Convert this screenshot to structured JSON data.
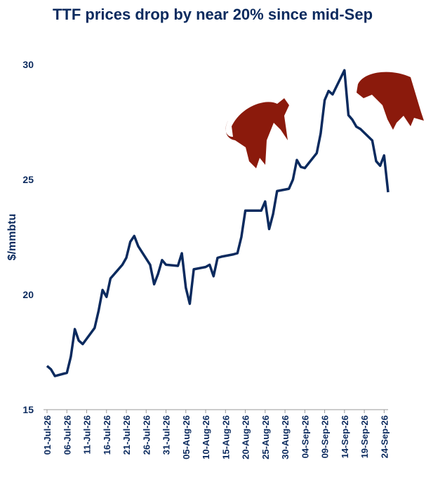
{
  "chart_data": {
    "type": "line",
    "title": "TTF prices drop by near 20% since mid-Sep",
    "y_label": "$/mmbtu",
    "x": [
      "01-Jul-26",
      "02-Jul-26",
      "03-Jul-26",
      "06-Jul-26",
      "07-Jul-26",
      "08-Jul-26",
      "09-Jul-26",
      "10-Jul-26",
      "13-Jul-26",
      "14-Jul-26",
      "15-Jul-26",
      "16-Jul-26",
      "17-Jul-26",
      "20-Jul-26",
      "21-Jul-26",
      "22-Jul-26",
      "23-Jul-26",
      "24-Jul-26",
      "27-Jul-26",
      "28-Jul-26",
      "29-Jul-26",
      "30-Jul-26",
      "31-Jul-26",
      "03-Aug-26",
      "04-Aug-26",
      "05-Aug-26",
      "06-Aug-26",
      "07-Aug-26",
      "10-Aug-26",
      "11-Aug-26",
      "12-Aug-26",
      "13-Aug-26",
      "14-Aug-26",
      "17-Aug-26",
      "18-Aug-26",
      "19-Aug-26",
      "20-Aug-26",
      "21-Aug-26",
      "24-Aug-26",
      "25-Aug-26",
      "26-Aug-26",
      "27-Aug-26",
      "28-Aug-26",
      "31-Aug-26",
      "01-Sep-26",
      "02-Sep-26",
      "03-Sep-26",
      "04-Sep-26",
      "07-Sep-26",
      "08-Sep-26",
      "09-Sep-26",
      "10-Sep-26",
      "11-Sep-26",
      "14-Sep-26",
      "15-Sep-26",
      "16-Sep-26",
      "17-Sep-26",
      "18-Sep-26",
      "21-Sep-26",
      "22-Sep-26",
      "23-Sep-26",
      "24-Sep-26",
      "25-Sep-26"
    ],
    "series": [
      {
        "name": "TTF",
        "color": "#0b2a5e",
        "values": [
          16.9,
          16.75,
          16.46,
          16.6,
          17.3,
          18.5,
          18.0,
          17.85,
          18.55,
          19.3,
          20.2,
          19.9,
          20.7,
          21.3,
          21.6,
          22.3,
          22.55,
          22.1,
          21.3,
          20.45,
          20.9,
          21.5,
          21.3,
          21.25,
          21.8,
          20.3,
          19.6,
          21.1,
          21.2,
          21.3,
          20.8,
          21.6,
          21.65,
          21.75,
          21.8,
          22.5,
          23.65,
          23.65,
          23.65,
          24.05,
          22.85,
          23.5,
          24.5,
          24.6,
          25.0,
          25.85,
          25.55,
          25.5,
          26.15,
          27.0,
          28.45,
          28.85,
          28.7,
          29.75,
          27.8,
          27.6,
          27.3,
          27.2,
          26.7,
          25.8,
          25.6,
          26.05,
          24.45
        ]
      }
    ],
    "xlim": [
      "01-Jul-26",
      "25-Sep-26"
    ],
    "xticks": [
      "01-Jul-26",
      "06-Jul-26",
      "11-Jul-26",
      "16-Jul-26",
      "21-Jul-26",
      "26-Jul-26",
      "31-Jul-26",
      "05-Aug-26",
      "10-Aug-26",
      "15-Aug-26",
      "20-Aug-26",
      "25-Aug-26",
      "30-Aug-26",
      "04-Sep-26",
      "09-Sep-26",
      "14-Sep-26",
      "19-Sep-26",
      "24-Sep-26"
    ],
    "ylim": [
      15,
      30
    ],
    "yticks": [
      15,
      20,
      25,
      30
    ]
  }
}
